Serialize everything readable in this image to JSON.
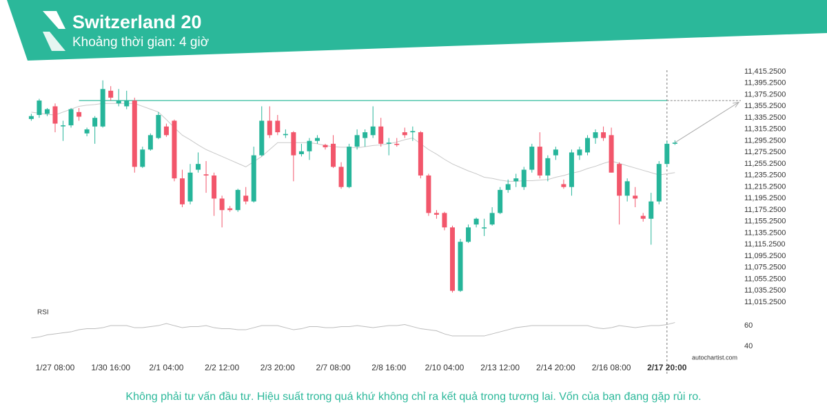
{
  "header": {
    "title": "Switzerland 20",
    "subtitle": "Khoảng thời gian: 4 giờ"
  },
  "footer": {
    "disclaimer": "Không phải tư vấn đầu tư. Hiệu suất trong quá khứ không chỉ ra kết quả trong tương lai. Vốn của bạn đang gặp rủi ro.",
    "watermark": "autochartist.com"
  },
  "chart_data": {
    "type": "candlestick",
    "categories": [
      null,
      null,
      null,
      "1/27 08:00",
      null,
      null,
      null,
      null,
      null,
      null,
      "1/30 16:00",
      null,
      null,
      null,
      null,
      null,
      null,
      "2/1 04:00",
      null,
      null,
      null,
      null,
      null,
      null,
      "2/2 12:00",
      null,
      null,
      null,
      null,
      null,
      null,
      "2/3 20:00",
      null,
      null,
      null,
      null,
      null,
      null,
      "2/7 08:00",
      null,
      null,
      null,
      null,
      null,
      null,
      "2/8 16:00",
      null,
      null,
      null,
      null,
      null,
      null,
      "2/10 04:00",
      null,
      null,
      null,
      null,
      null,
      null,
      "2/13 12:00",
      null,
      null,
      null,
      null,
      null,
      null,
      "2/14 20:00",
      null,
      null,
      null,
      null,
      null,
      null,
      "2/16 08:00",
      null,
      null,
      null,
      null,
      null,
      null,
      "2/17 20:00",
      null
    ],
    "open": [
      11333,
      11340,
      11342,
      11355,
      11322,
      11322,
      11345,
      11308,
      11320,
      11320,
      11382,
      11360,
      11355,
      11365,
      11250,
      11280,
      11300,
      11320,
      11330,
      11230,
      11190,
      11245,
      11237,
      11235,
      11195,
      11178,
      11175,
      11200,
      11190,
      11270,
      11330,
      11330,
      11305,
      11310,
      11272,
      11277,
      11295,
      11288,
      11290,
      11250,
      11215,
      11285,
      11300,
      11305,
      11320,
      11290,
      11290,
      11310,
      11310,
      11310,
      11235,
      11170,
      11170,
      11145,
      11035,
      11120,
      11150,
      11145,
      11150,
      11170,
      11210,
      11225,
      11215,
      11245,
      11285,
      11235,
      11270,
      11220,
      11215,
      11270,
      11275,
      11300,
      11310,
      11305,
      11255,
      11200,
      11200,
      11165,
      11160,
      11190,
      11255,
      11290
    ],
    "high": [
      11342,
      11368,
      11352,
      11360,
      11330,
      11352,
      11352,
      11318,
      11338,
      11400,
      11390,
      11385,
      11382,
      11370,
      11285,
      11308,
      11345,
      11325,
      11332,
      11245,
      11255,
      11275,
      11260,
      11240,
      11200,
      11182,
      11212,
      11215,
      11285,
      11355,
      11355,
      11340,
      11315,
      11312,
      11290,
      11300,
      11305,
      11290,
      11305,
      11258,
      11290,
      11315,
      11315,
      11355,
      11335,
      11300,
      11300,
      11318,
      11320,
      11312,
      11238,
      11175,
      11172,
      11148,
      11125,
      11150,
      11162,
      11160,
      11180,
      11215,
      11228,
      11238,
      11250,
      11290,
      11310,
      11270,
      11285,
      11228,
      11280,
      11285,
      11305,
      11315,
      11320,
      11318,
      11258,
      11230,
      11215,
      11170,
      11205,
      11260,
      11295,
      11296
    ],
    "low": [
      11330,
      11335,
      11338,
      11310,
      11295,
      11318,
      11330,
      11303,
      11290,
      11318,
      11365,
      11355,
      11350,
      11240,
      11248,
      11278,
      11298,
      11302,
      11225,
      11180,
      11185,
      11240,
      11205,
      11165,
      11145,
      11172,
      11172,
      11185,
      11188,
      11268,
      11300,
      11305,
      11300,
      11225,
      11268,
      11262,
      11290,
      11280,
      11248,
      11212,
      11213,
      11280,
      11285,
      11300,
      11285,
      11270,
      11285,
      11300,
      11295,
      11230,
      11165,
      11160,
      11140,
      11032,
      11033,
      11118,
      11145,
      11130,
      11148,
      11168,
      11205,
      11215,
      11210,
      11240,
      11230,
      11225,
      11262,
      11212,
      11200,
      11262,
      11270,
      11290,
      11295,
      11240,
      11150,
      11190,
      11180,
      11155,
      11115,
      11185,
      11250,
      11288
    ],
    "close": [
      11338,
      11365,
      11350,
      11325,
      11322,
      11350,
      11337,
      11315,
      11335,
      11385,
      11370,
      11365,
      11365,
      11250,
      11280,
      11305,
      11340,
      11305,
      11230,
      11185,
      11240,
      11255,
      11235,
      11195,
      11175,
      11175,
      11210,
      11190,
      11270,
      11330,
      11305,
      11310,
      11307,
      11270,
      11277,
      11295,
      11300,
      11284,
      11250,
      11215,
      11285,
      11305,
      11310,
      11320,
      11290,
      11292,
      11288,
      11305,
      11312,
      11235,
      11170,
      11167,
      11145,
      11035,
      11120,
      11145,
      11160,
      11145,
      11170,
      11210,
      11220,
      11230,
      11245,
      11285,
      11235,
      11265,
      11280,
      11215,
      11275,
      11280,
      11300,
      11310,
      11300,
      11240,
      11200,
      11225,
      11195,
      11160,
      11190,
      11255,
      11290,
      11292
    ],
    "ma": [
      11345,
      11343,
      11341,
      11340,
      11345,
      11350,
      11355,
      11357,
      11358,
      11360,
      11360,
      11360,
      11360,
      11360,
      11355,
      11350,
      11345,
      11332,
      11318,
      11305,
      11297,
      11288,
      11280,
      11274,
      11268,
      11262,
      11256,
      11250,
      11259,
      11268,
      11280,
      11292,
      11292,
      11292,
      11292,
      11292,
      11290,
      11287,
      11285,
      11284,
      11284,
      11283,
      11285,
      11287,
      11288,
      11290,
      11293,
      11297,
      11300,
      11290,
      11280,
      11272,
      11263,
      11255,
      11249,
      11243,
      11238,
      11232,
      11230,
      11227,
      11225,
      11225,
      11226,
      11226,
      11227,
      11228,
      11232,
      11235,
      11239,
      11242,
      11247,
      11251,
      11256,
      11260,
      11256,
      11252,
      11248,
      11244,
      11240,
      11236,
      11238,
      11240
    ],
    "up_color": "#26b59a",
    "down_color": "#f2566b",
    "ma_color": "#c8c8c8",
    "resistance": 11365,
    "forecast_target": 11362,
    "ylim": [
      11005.25,
      11425.25
    ],
    "yticks": [
      {
        "value": 11415.25,
        "label": "11,415.2500"
      },
      {
        "value": 11395.25,
        "label": "11,395.2500"
      },
      {
        "value": 11375.25,
        "label": "11,375.2500"
      },
      {
        "value": 11355.25,
        "label": "11,355.2500"
      },
      {
        "value": 11335.25,
        "label": "11,335.2500"
      },
      {
        "value": 11315.25,
        "label": "11,315.2500"
      },
      {
        "value": 11295.25,
        "label": "11,295.2500"
      },
      {
        "value": 11275.25,
        "label": "11,275.2500"
      },
      {
        "value": 11255.25,
        "label": "11,255.2500"
      },
      {
        "value": 11235.25,
        "label": "11,235.2500"
      },
      {
        "value": 11215.25,
        "label": "11,215.2500"
      },
      {
        "value": 11195.25,
        "label": "11,195.2500"
      },
      {
        "value": 11175.25,
        "label": "11,175.2500"
      },
      {
        "value": 11155.25,
        "label": "11,155.2500"
      },
      {
        "value": 11135.25,
        "label": "11,135.2500"
      },
      {
        "value": 11115.25,
        "label": "11,115.2500"
      },
      {
        "value": 11095.25,
        "label": "11,095.2500"
      },
      {
        "value": 11075.25,
        "label": "11,075.2500"
      },
      {
        "value": 11055.25,
        "label": "11,055.2500"
      },
      {
        "value": 11035.25,
        "label": "11,035.2500"
      },
      {
        "value": 11015.25,
        "label": "11,015.2500"
      }
    ],
    "rsi": {
      "label": "RSI",
      "ylim": [
        28.7,
        68.7
      ],
      "yticks": [
        40,
        60
      ],
      "values": [
        48,
        49,
        51,
        52,
        53,
        54,
        56,
        57,
        57,
        58,
        60,
        60,
        60,
        58,
        58,
        59,
        60,
        62,
        60,
        58,
        59,
        59,
        60,
        58,
        57,
        57,
        56,
        56,
        58,
        60,
        60,
        60,
        58,
        56,
        57,
        59,
        59,
        58,
        58,
        59,
        59,
        60,
        59,
        58,
        59,
        60,
        60,
        61,
        59,
        57,
        56,
        55,
        52,
        50,
        50,
        50,
        50,
        50,
        52,
        54,
        56,
        58,
        59,
        60,
        60,
        60,
        60,
        60,
        60,
        60,
        60,
        58,
        57,
        58,
        60,
        59,
        58,
        59,
        60,
        60,
        61,
        63
      ]
    }
  }
}
